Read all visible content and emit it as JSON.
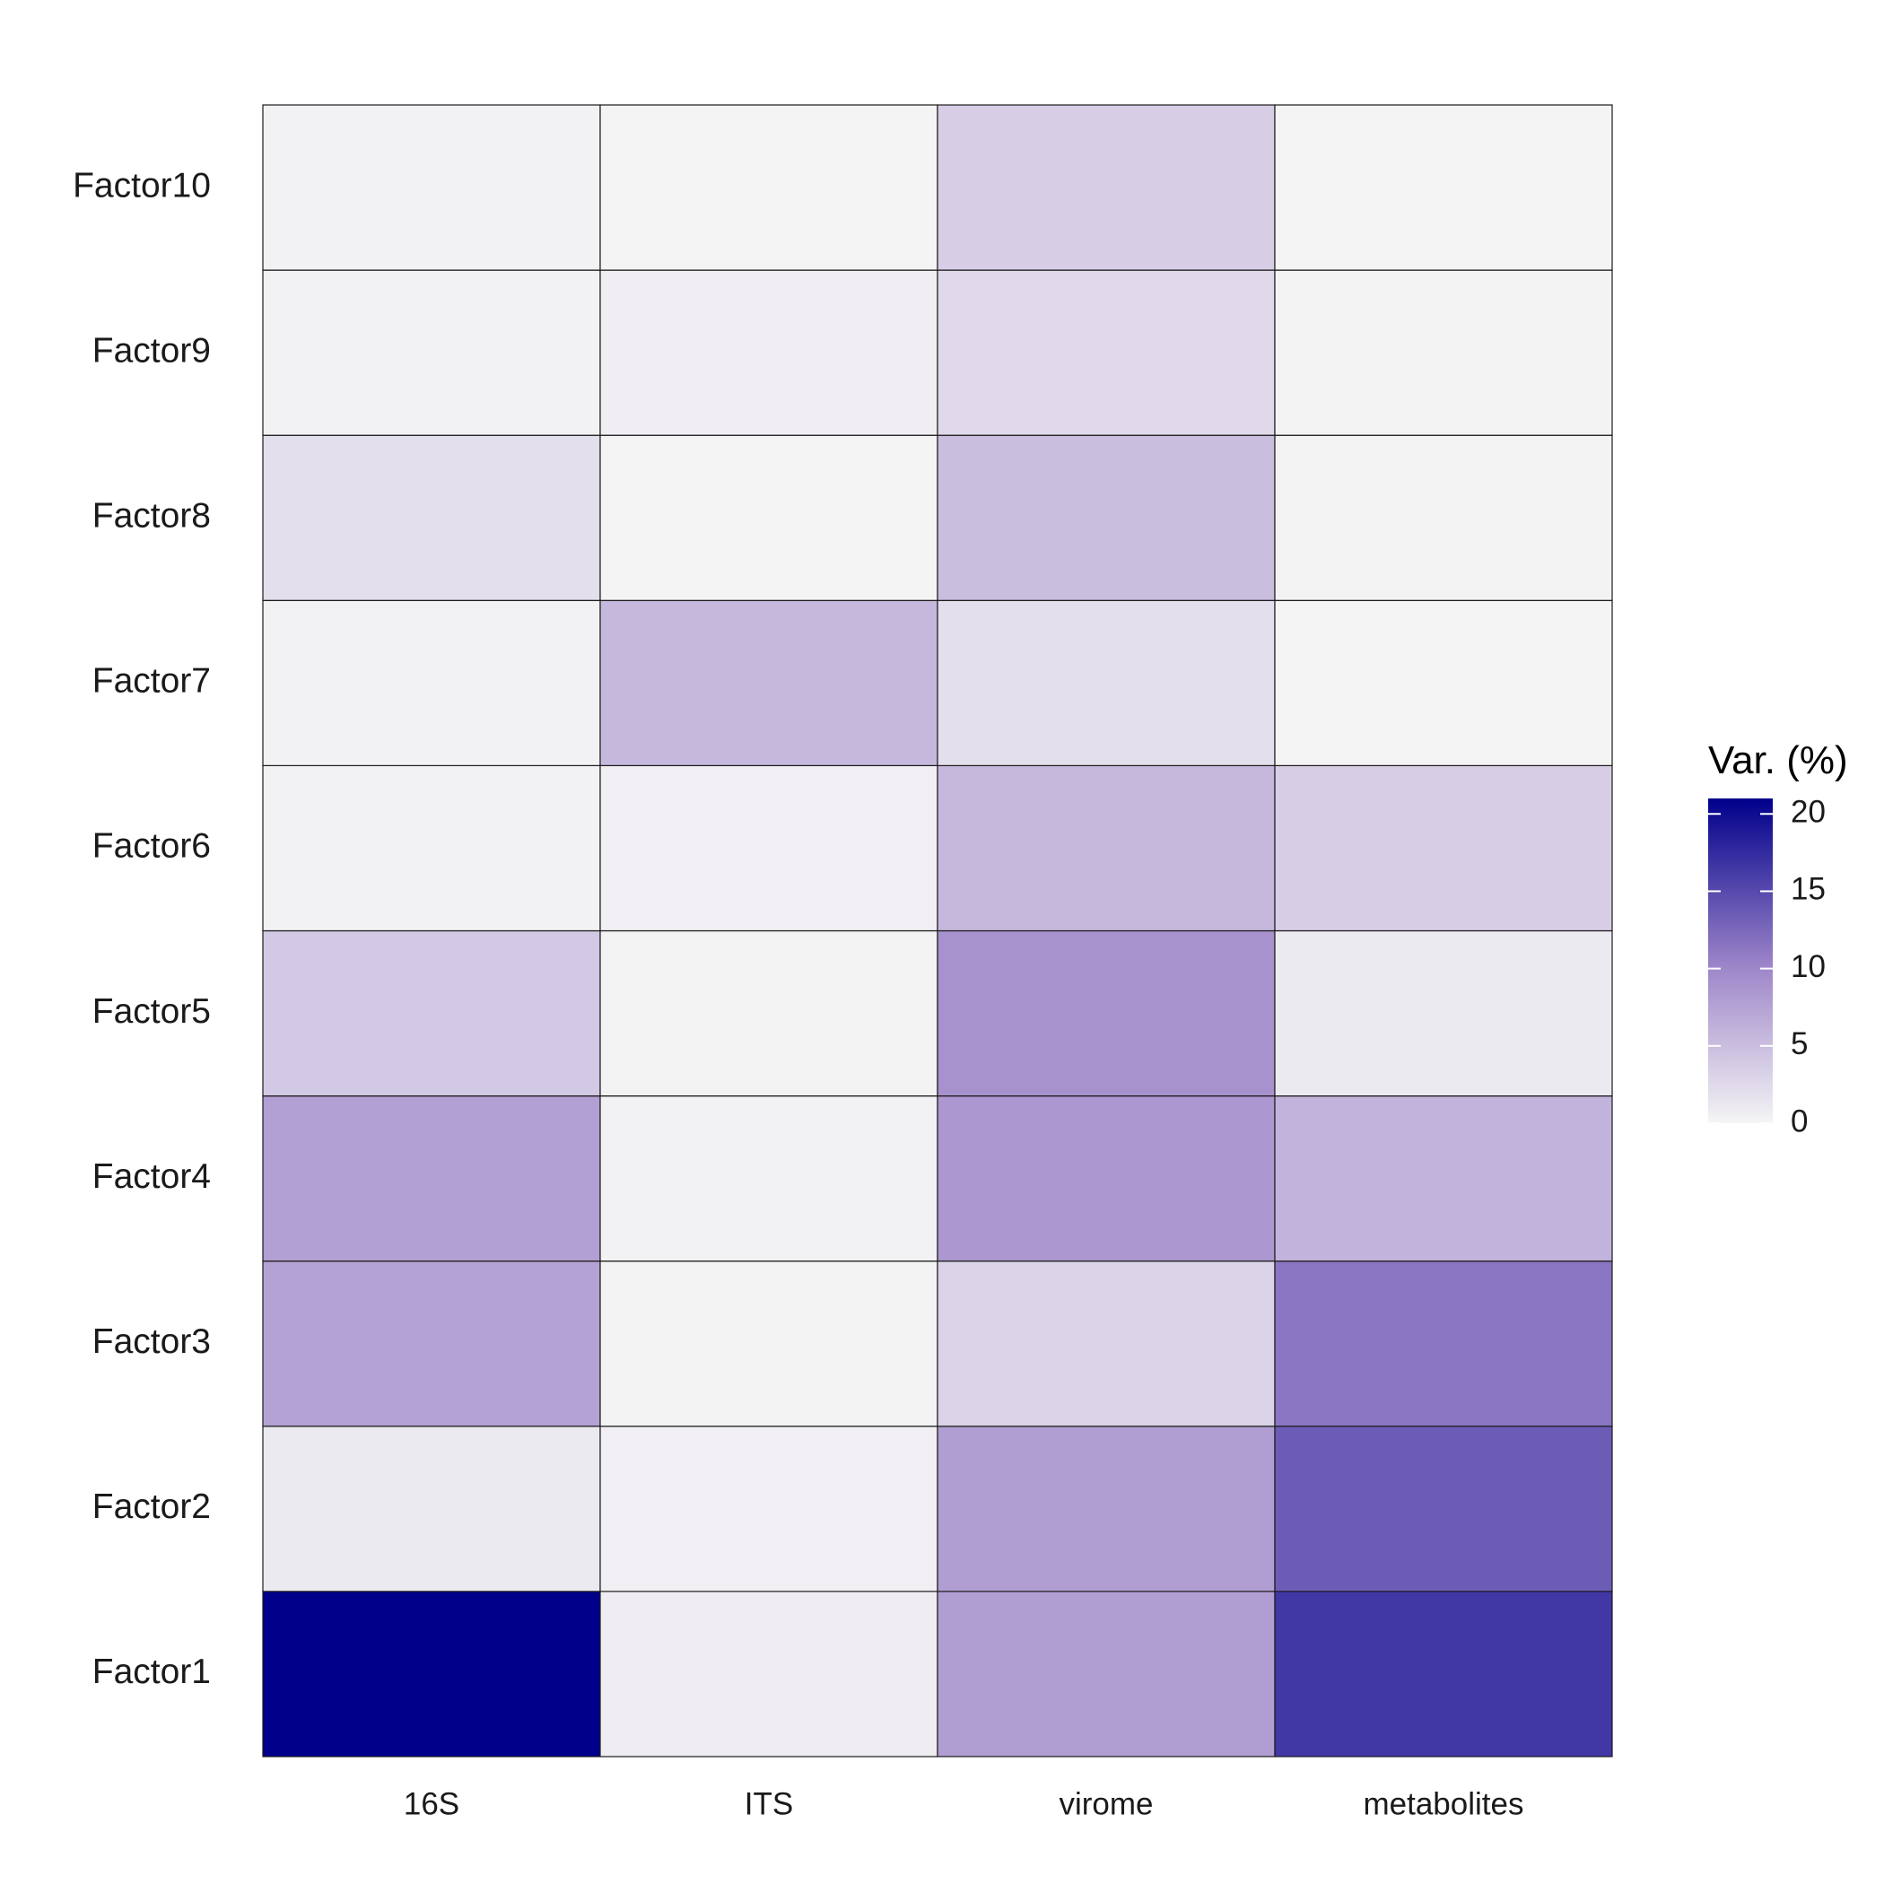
{
  "chart_data": {
    "type": "heatmap",
    "x_categories": [
      "16S",
      "ITS",
      "virome",
      "metabolites"
    ],
    "y_categories": [
      "Factor1",
      "Factor2",
      "Factor3",
      "Factor4",
      "Factor5",
      "Factor6",
      "Factor7",
      "Factor8",
      "Factor9",
      "Factor10"
    ],
    "values": [
      [
        21.0,
        0.7,
        8.0,
        16.5
      ],
      [
        1.0,
        0.5,
        8.0,
        13.5
      ],
      [
        7.5,
        0.2,
        3.0,
        11.5
      ],
      [
        7.8,
        0.3,
        8.5,
        6.0
      ],
      [
        4.0,
        0.2,
        9.0,
        1.0
      ],
      [
        0.3,
        0.5,
        5.5,
        3.5
      ],
      [
        0.3,
        5.5,
        2.0,
        0.1
      ],
      [
        2.0,
        0.1,
        5.0,
        0.2
      ],
      [
        0.3,
        0.6,
        2.5,
        0.2
      ],
      [
        0.4,
        0.1,
        3.5,
        0.1
      ]
    ],
    "color_scale": {
      "low": "#f5f5f5",
      "mid": "#9e86c9",
      "high": "#00008b",
      "min": 0,
      "max": 21
    },
    "legend": {
      "title": "Var. (%)",
      "ticks": [
        0,
        5,
        10,
        15,
        20
      ],
      "position": "right"
    }
  }
}
